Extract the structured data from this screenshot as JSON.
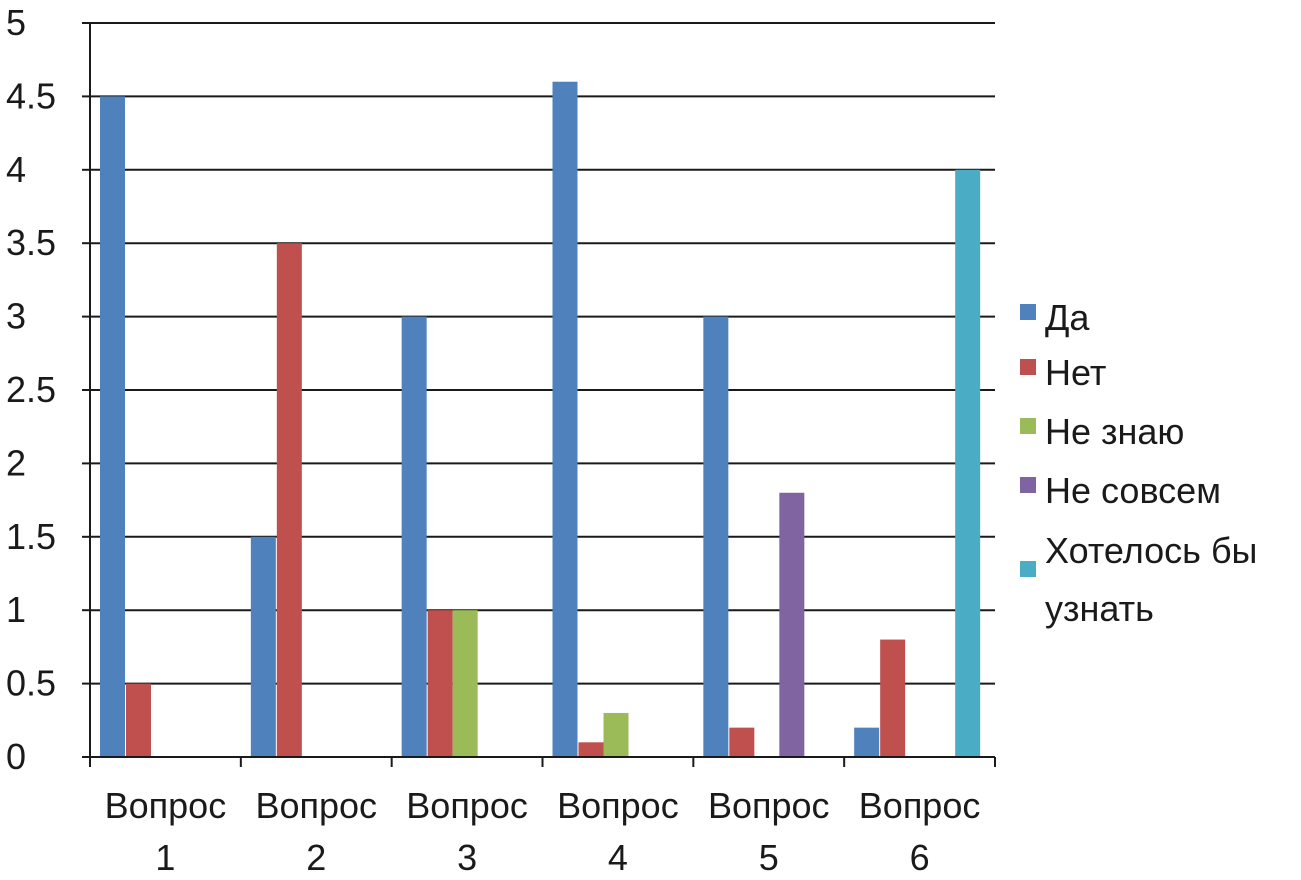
{
  "chart_data": {
    "type": "bar",
    "categories": [
      [
        "Вопрос",
        "1"
      ],
      [
        "Вопрос",
        "2"
      ],
      [
        "Вопрос",
        "3"
      ],
      [
        "Вопрос",
        "4"
      ],
      [
        "Вопрос",
        "5"
      ],
      [
        "Вопрос",
        "6"
      ]
    ],
    "series": [
      {
        "name": "Да",
        "color": "#4f81bd",
        "values": [
          4.5,
          1.5,
          3.0,
          4.6,
          3.0,
          0.2
        ]
      },
      {
        "name": "Нет",
        "color": "#c0504d",
        "values": [
          0.5,
          3.5,
          1.0,
          0.1,
          0.2,
          0.8
        ]
      },
      {
        "name": "Не знаю",
        "color": "#9bbb59",
        "values": [
          0,
          0,
          1.0,
          0.3,
          0,
          0
        ]
      },
      {
        "name": "Не совсем",
        "color": "#8064a2",
        "values": [
          0,
          0,
          0,
          0,
          1.8,
          0
        ]
      },
      {
        "name": [
          "Хотелось бы",
          "узнать"
        ],
        "color": "#4bacc6",
        "values": [
          0,
          0,
          0,
          0,
          0,
          4.0
        ]
      }
    ],
    "ylim": [
      0,
      5
    ],
    "yticks": [
      "0",
      "0.5",
      "1",
      "1.5",
      "2",
      "2.5",
      "3",
      "3.5",
      "4",
      "4.5",
      "5"
    ],
    "grid": true,
    "legend_position": "right"
  }
}
